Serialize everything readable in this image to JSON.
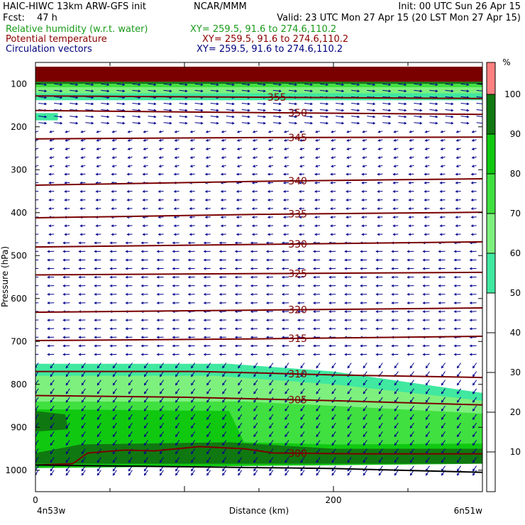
{
  "header": {
    "title_left": "HAIC-HIWC 13km ARW-GFS init",
    "title_center": "NCAR/MMM",
    "title_right": "Init: 00 UTC Sun 26 Apr 15",
    "fcst_label": "Fcst:",
    "fcst_value": "47 h",
    "valid": "Valid: 23 UTC Mon 27 Apr 15 (20 LST Mon 27 Apr 15)",
    "fields": [
      {
        "name": "Relative humidity (w.r.t. water)",
        "coords": "XY= 259.5, 91.6 to 274.6,110.2",
        "color": "#1a9a1a"
      },
      {
        "name": "Potential temperature",
        "coords": "XY= 259.5, 91.6 to 274.6,110.2",
        "color": "#8b0000"
      },
      {
        "name": "Circulation vectors",
        "coords": "XY= 259.5, 91.6 to 274.6,110.2",
        "color": "#00007f"
      }
    ]
  },
  "colorbar": {
    "unit": "%",
    "levels": [
      0,
      10,
      20,
      30,
      40,
      50,
      60,
      70,
      80,
      90,
      100
    ],
    "labels": [
      "10",
      "20",
      "30",
      "40",
      "50",
      "60",
      "70",
      "80",
      "90",
      "100"
    ],
    "colors": [
      "#ffffff",
      "#ffffff",
      "#ffffff",
      "#ffffff",
      "#ffffff",
      "#40e8a0",
      "#7ef07e",
      "#40e040",
      "#10c810",
      "#107810",
      "#ff8080"
    ]
  },
  "chart_data": {
    "type": "vertical-cross-section",
    "xlabel": "Distance (km)",
    "ylabel": "Pressure (hPa)",
    "xlim": [
      0,
      300
    ],
    "ylim": [
      1050,
      50
    ],
    "x_ticks": [
      0,
      200
    ],
    "y_ticks": [
      100,
      200,
      300,
      400,
      500,
      600,
      700,
      800,
      900,
      1000
    ],
    "x_end_labels": [
      "4n53w",
      "6n51w"
    ],
    "theta_contours": [
      {
        "value": "355",
        "label_x": 162,
        "points": [
          [
            0,
            128
          ],
          [
            150,
            131
          ],
          [
            300,
            134
          ]
        ]
      },
      {
        "value": "350",
        "label_x": 176,
        "points": [
          [
            0,
            162
          ],
          [
            150,
            167
          ],
          [
            300,
            171
          ]
        ]
      },
      {
        "value": "345",
        "label_x": 176,
        "points": [
          [
            0,
            228
          ],
          [
            150,
            225
          ],
          [
            300,
            224
          ]
        ]
      },
      {
        "value": "340",
        "label_x": 176,
        "points": [
          [
            0,
            336
          ],
          [
            150,
            327
          ],
          [
            300,
            321
          ]
        ]
      },
      {
        "value": "335",
        "label_x": 176,
        "points": [
          [
            0,
            412
          ],
          [
            150,
            404
          ],
          [
            300,
            399
          ]
        ]
      },
      {
        "value": "330",
        "label_x": 176,
        "points": [
          [
            0,
            480
          ],
          [
            150,
            474
          ],
          [
            300,
            468
          ]
        ]
      },
      {
        "value": "325",
        "label_x": 176,
        "points": [
          [
            0,
            545
          ],
          [
            150,
            542
          ],
          [
            300,
            539
          ]
        ]
      },
      {
        "value": "320",
        "label_x": 176,
        "points": [
          [
            0,
            632
          ],
          [
            150,
            627
          ],
          [
            300,
            622
          ]
        ]
      },
      {
        "value": "315",
        "label_x": 176,
        "points": [
          [
            0,
            698
          ],
          [
            150,
            694
          ],
          [
            300,
            688
          ]
        ]
      },
      {
        "value": "310",
        "label_x": 176,
        "points": [
          [
            0,
            770
          ],
          [
            110,
            770
          ],
          [
            200,
            778
          ],
          [
            300,
            784
          ]
        ]
      },
      {
        "value": "305",
        "label_x": 176,
        "points": [
          [
            0,
            826
          ],
          [
            100,
            830
          ],
          [
            200,
            838
          ],
          [
            300,
            848
          ]
        ]
      },
      {
        "value": "300",
        "label_x": 176,
        "points": [
          [
            0,
            988
          ],
          [
            25,
            985
          ],
          [
            35,
            960
          ],
          [
            60,
            953
          ],
          [
            80,
            955
          ],
          [
            110,
            945
          ],
          [
            140,
            950
          ],
          [
            160,
            960
          ],
          [
            220,
            962
          ],
          [
            300,
            962
          ]
        ]
      }
    ],
    "rh_regions": [
      {
        "color": "#7a0000",
        "points": [
          [
            0,
            60
          ],
          [
            300,
            60
          ],
          [
            300,
            95
          ],
          [
            0,
            95
          ]
        ]
      },
      {
        "color": "#107810",
        "points": [
          [
            0,
            95
          ],
          [
            300,
            95
          ],
          [
            300,
            100
          ],
          [
            0,
            100
          ]
        ]
      },
      {
        "color": "#40e040",
        "points": [
          [
            0,
            100
          ],
          [
            300,
            100
          ],
          [
            300,
            108
          ],
          [
            0,
            108
          ]
        ]
      },
      {
        "color": "#7ef07e",
        "points": [
          [
            0,
            108
          ],
          [
            300,
            108
          ],
          [
            300,
            122
          ],
          [
            0,
            122
          ]
        ]
      },
      {
        "color": "#40e8a0",
        "points": [
          [
            0,
            122
          ],
          [
            300,
            122
          ],
          [
            300,
            138
          ],
          [
            0,
            138
          ]
        ]
      },
      {
        "color": "#40e8a0",
        "points": [
          [
            0,
            168
          ],
          [
            15,
            168
          ],
          [
            15,
            185
          ],
          [
            0,
            185
          ]
        ]
      },
      {
        "color": "#40e8a0",
        "points": [
          [
            0,
            752
          ],
          [
            130,
            752
          ],
          [
            200,
            770
          ],
          [
            300,
            820
          ],
          [
            300,
            1050
          ],
          [
            0,
            1050
          ]
        ]
      },
      {
        "color": "#7ef07e",
        "points": [
          [
            0,
            780
          ],
          [
            120,
            780
          ],
          [
            200,
            800
          ],
          [
            300,
            838
          ],
          [
            300,
            1050
          ],
          [
            0,
            1050
          ]
        ]
      },
      {
        "color": "#40e040",
        "points": [
          [
            0,
            840
          ],
          [
            140,
            840
          ],
          [
            200,
            850
          ],
          [
            300,
            868
          ],
          [
            300,
            1050
          ],
          [
            0,
            1050
          ]
        ]
      },
      {
        "color": "#10c810",
        "points": [
          [
            0,
            858
          ],
          [
            130,
            862
          ],
          [
            140,
            935
          ],
          [
            200,
            940
          ],
          [
            300,
            938
          ],
          [
            300,
            1050
          ],
          [
            0,
            1050
          ]
        ]
      },
      {
        "color": "#107810",
        "points": [
          [
            0,
            862
          ],
          [
            20,
            870
          ],
          [
            22,
            905
          ],
          [
            0,
            910
          ]
        ]
      },
      {
        "color": "#107810",
        "points": [
          [
            30,
            940
          ],
          [
            130,
            935
          ],
          [
            200,
            950
          ],
          [
            300,
            950
          ],
          [
            300,
            985
          ],
          [
            0,
            985
          ],
          [
            0,
            960
          ]
        ]
      },
      {
        "color": "#ffffff",
        "points": [
          [
            0,
            995
          ],
          [
            300,
            985
          ],
          [
            300,
            1050
          ],
          [
            0,
            1050
          ]
        ]
      }
    ],
    "vectors": {
      "x_start": 2,
      "x_step": 10.5,
      "count": 29,
      "levels": [
        100,
        115,
        130,
        145,
        160,
        175,
        190,
        210,
        230,
        250,
        270,
        290,
        310,
        330,
        350,
        370,
        390,
        410,
        430,
        450,
        470,
        490,
        510,
        530,
        550,
        570,
        590,
        610,
        630,
        650,
        670,
        690,
        710,
        730,
        750,
        770,
        790,
        810,
        830,
        850,
        870,
        890,
        910,
        930,
        950,
        970,
        990,
        1000
      ],
      "color": "#00008b"
    },
    "ground": {
      "points": [
        [
          0,
          988
        ],
        [
          100,
          992
        ],
        [
          200,
          996
        ],
        [
          300,
          1005
        ]
      ]
    }
  }
}
